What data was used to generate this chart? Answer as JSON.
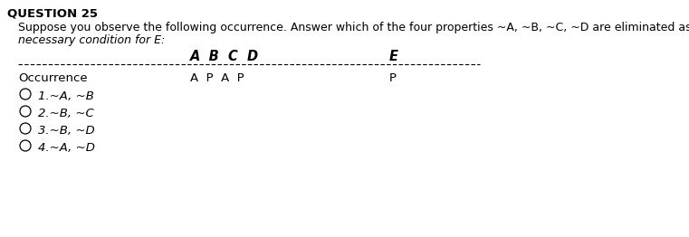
{
  "title": "QUESTION 25",
  "body_line1": "Suppose you observe the following occurrence. Answer which of the four properties ~A, ~B, ~C, ~D are eliminated as a",
  "body_line2": "necessary condition for E:",
  "header_ABCD": "A  B  C  D",
  "header_E": "E",
  "data_label": "Occurrence",
  "data_ABCD": "A  P  A  P",
  "data_E": "P",
  "options": [
    "1.~A, ~B",
    "2.~B, ~C",
    "3.~B, ~D",
    "4.~A, ~D"
  ],
  "bg_color": "#ffffff",
  "text_color": "#000000",
  "title_fontsize": 9.5,
  "body_fontsize": 9.0,
  "header_fontsize": 10.5,
  "data_fontsize": 9.5,
  "option_fontsize": 9.5
}
